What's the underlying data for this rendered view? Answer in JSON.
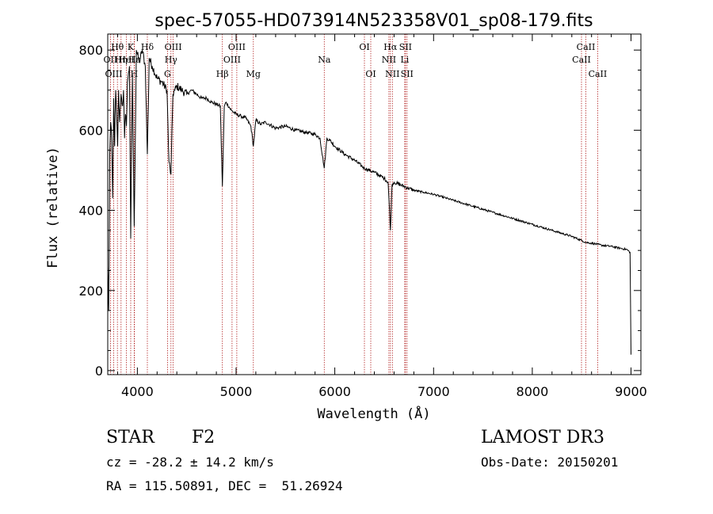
{
  "chart_data": {
    "type": "line",
    "title": "spec-57055-HD073914N523358V01_sp08-179.fits",
    "xlabel": "Wavelength (Å)",
    "ylabel": "Flux (relative)",
    "xlim": [
      3700,
      9100
    ],
    "ylim": [
      -10,
      840
    ],
    "xticks": [
      4000,
      5000,
      6000,
      7000,
      8000,
      9000
    ],
    "yticks": [
      0,
      200,
      400,
      600,
      800
    ],
    "series": [
      {
        "name": "flux",
        "x": [
          3700,
          3710,
          3720,
          3730,
          3740,
          3750,
          3760,
          3770,
          3780,
          3790,
          3800,
          3810,
          3820,
          3835,
          3850,
          3860,
          3870,
          3880,
          3889,
          3900,
          3920,
          3933,
          3950,
          3968,
          3990,
          4020,
          4050,
          4080,
          4101,
          4120,
          4150,
          4200,
          4250,
          4300,
          4320,
          4340,
          4360,
          4380,
          4400,
          4450,
          4500,
          4550,
          4600,
          4650,
          4700,
          4750,
          4800,
          4840,
          4861,
          4880,
          4900,
          4950,
          5000,
          5050,
          5100,
          5150,
          5175,
          5200,
          5250,
          5300,
          5400,
          5500,
          5600,
          5700,
          5800,
          5850,
          5893,
          5920,
          5950,
          6000,
          6100,
          6200,
          6300,
          6400,
          6500,
          6540,
          6563,
          6580,
          6600,
          6700,
          6800,
          6900,
          7000,
          7200,
          7400,
          7600,
          7800,
          8000,
          8200,
          8400,
          8498,
          8542,
          8600,
          8662,
          8700,
          8800,
          8900,
          8960,
          8990,
          9000
        ],
        "y": [
          260,
          150,
          540,
          620,
          570,
          430,
          680,
          560,
          700,
          640,
          560,
          700,
          620,
          690,
          660,
          700,
          580,
          640,
          610,
          720,
          760,
          330,
          740,
          360,
          800,
          770,
          800,
          760,
          540,
          780,
          760,
          730,
          720,
          700,
          520,
          490,
          690,
          700,
          710,
          700,
          690,
          700,
          690,
          680,
          680,
          670,
          665,
          660,
          460,
          660,
          670,
          650,
          640,
          635,
          630,
          610,
          560,
          625,
          615,
          620,
          605,
          610,
          600,
          595,
          590,
          580,
          505,
          580,
          575,
          560,
          540,
          525,
          505,
          495,
          480,
          470,
          350,
          465,
          470,
          460,
          450,
          445,
          440,
          425,
          410,
          395,
          380,
          365,
          350,
          335,
          325,
          320,
          318,
          315,
          313,
          310,
          305,
          302,
          295,
          40
        ]
      }
    ],
    "lines": [
      {
        "name": "Hθ",
        "x": 3798,
        "row": 0
      },
      {
        "name": "OII",
        "x": 3727,
        "row": 1
      },
      {
        "name": "OIII",
        "x": 3760,
        "row": 2
      },
      {
        "name": "Hη",
        "x": 3835,
        "row": 1
      },
      {
        "name": "HeI",
        "x": 3889,
        "row": 1
      },
      {
        "name": "K",
        "x": 3933,
        "row": 0
      },
      {
        "name": "H",
        "x": 3968,
        "row": 2
      },
      {
        "name": "Hε",
        "x": 3970,
        "row": 1
      },
      {
        "name": "Hδ",
        "x": 4101,
        "row": 0
      },
      {
        "name": "OIII",
        "x": 4363,
        "row": 0
      },
      {
        "name": "Hγ",
        "x": 4340,
        "row": 1
      },
      {
        "name": "G",
        "x": 4305,
        "row": 2
      },
      {
        "name": "Hβ",
        "x": 4861,
        "row": 2
      },
      {
        "name": "OIII",
        "x": 4959,
        "row": 1
      },
      {
        "name": "OIII",
        "x": 5007,
        "row": 0
      },
      {
        "name": "Mg",
        "x": 5175,
        "row": 2
      },
      {
        "name": "Na",
        "x": 5893,
        "row": 1
      },
      {
        "name": "OI",
        "x": 6300,
        "row": 0
      },
      {
        "name": "OI",
        "x": 6364,
        "row": 2
      },
      {
        "name": "Hα",
        "x": 6563,
        "row": 0
      },
      {
        "name": "NII",
        "x": 6548,
        "row": 1
      },
      {
        "name": "NII",
        "x": 6583,
        "row": 2
      },
      {
        "name": "SII",
        "x": 6716,
        "row": 0
      },
      {
        "name": "Li",
        "x": 6708,
        "row": 1
      },
      {
        "name": "SII",
        "x": 6731,
        "row": 2
      },
      {
        "name": "CaII",
        "x": 8542,
        "row": 0
      },
      {
        "name": "CaII",
        "x": 8498,
        "row": 1
      },
      {
        "name": "CaII",
        "x": 8662,
        "row": 2
      }
    ]
  },
  "info": {
    "object_class": "STAR",
    "subclass": "F2",
    "survey": "LAMOST DR3",
    "cz": "cz = -28.2 ± 14.2 km/s",
    "obs_date": "Obs-Date: 20150201",
    "coords": "RA = 115.50891, DEC =  51.26924"
  }
}
